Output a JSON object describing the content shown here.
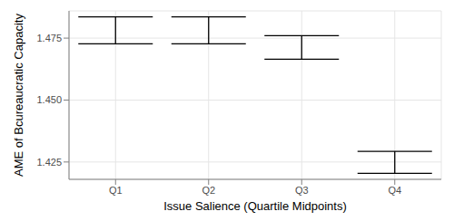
{
  "chart_data": {
    "type": "errorbar",
    "x_label": "Issue Salience (Quartile Midpoints)",
    "y_label": "AME of Bcureaucratic Capacity",
    "categories": [
      "Q1",
      "Q2",
      "Q3",
      "Q4"
    ],
    "lower": [
      1.4727,
      1.4727,
      1.4665,
      1.4204
    ],
    "upper": [
      1.4836,
      1.4836,
      1.476,
      1.4293
    ],
    "color": "#000000",
    "ylim": [
      1.418,
      1.486
    ],
    "yticks": [
      1.425,
      {
        "value": 1.45,
        "label": "1.450"
      },
      1.475
    ],
    "grid": true
  }
}
